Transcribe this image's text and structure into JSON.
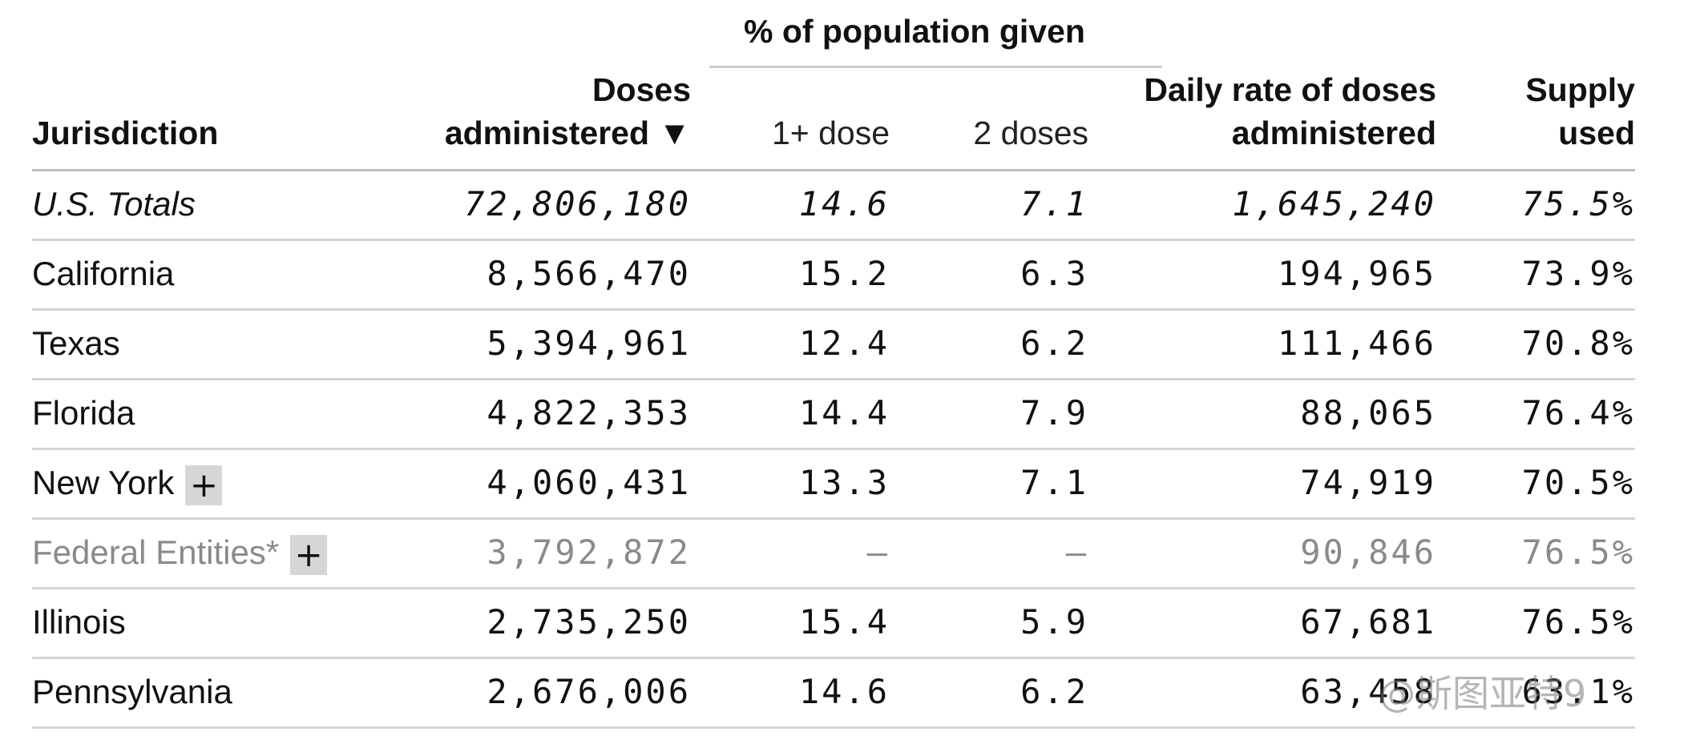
{
  "headers": {
    "group": "% of population given",
    "jurisdiction": "Jurisdiction",
    "doses_line1": "Doses",
    "doses_line2": "administered ▼",
    "one_dose": "1+ dose",
    "two_doses": "2 doses",
    "daily_line1": "Daily rate of doses",
    "daily_line2": "administered",
    "supply_line1": "Supply",
    "supply_line2": "used"
  },
  "expand_symbol": "+",
  "rows": [
    {
      "name": "U.S. Totals",
      "doses": "72,806,180",
      "one_dose": "14.6",
      "two_doses": "7.1",
      "daily": "1,645,240",
      "supply": "75.5%"
    },
    {
      "name": "California",
      "doses": "8,566,470",
      "one_dose": "15.2",
      "two_doses": "6.3",
      "daily": "194,965",
      "supply": "73.9%"
    },
    {
      "name": "Texas",
      "doses": "5,394,961",
      "one_dose": "12.4",
      "two_doses": "6.2",
      "daily": "111,466",
      "supply": "70.8%"
    },
    {
      "name": "Florida",
      "doses": "4,822,353",
      "one_dose": "14.4",
      "two_doses": "7.9",
      "daily": "88,065",
      "supply": "76.4%"
    },
    {
      "name": "New York",
      "doses": "4,060,431",
      "one_dose": "13.3",
      "two_doses": "7.1",
      "daily": "74,919",
      "supply": "70.5%"
    },
    {
      "name": "Federal Entities*",
      "doses": "3,792,872",
      "one_dose": "–",
      "two_doses": "–",
      "daily": "90,846",
      "supply": "76.5%"
    },
    {
      "name": "Illinois",
      "doses": "2,735,250",
      "one_dose": "15.4",
      "two_doses": "5.9",
      "daily": "67,681",
      "supply": "76.5%"
    },
    {
      "name": "Pennsylvania",
      "doses": "2,676,006",
      "one_dose": "14.6",
      "two_doses": "6.2",
      "daily": "63,458",
      "supply": "63.1%"
    }
  ],
  "watermark": "@斯图亚特9"
}
